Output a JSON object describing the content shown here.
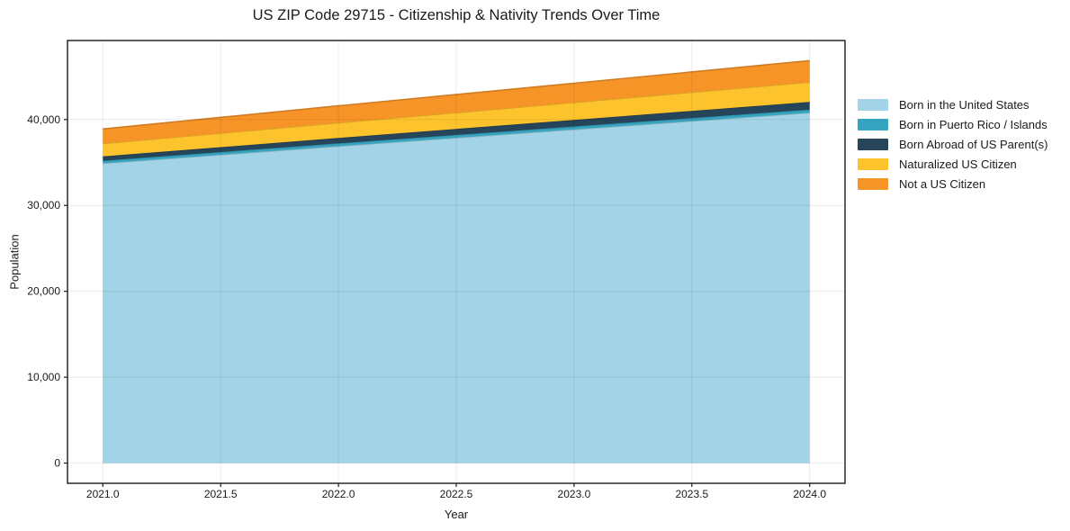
{
  "chart_data": {
    "type": "area",
    "stacked": true,
    "title": "US ZIP Code 29715 - Citizenship & Nativity Trends Over Time",
    "xlabel": "Year",
    "ylabel": "Population",
    "x": [
      2021,
      2022,
      2023,
      2024
    ],
    "series": [
      {
        "name": "Born in the United States",
        "color": "#a3d3e6",
        "values": [
          34900,
          36900,
          38850,
          40800
        ]
      },
      {
        "name": "Born in Puerto Rico / Islands",
        "color": "#35a4c0",
        "values": [
          300,
          320,
          340,
          350
        ]
      },
      {
        "name": "Born Abroad of US Parent(s)",
        "color": "#26455a",
        "values": [
          500,
          630,
          770,
          900
        ]
      },
      {
        "name": "Naturalized US Citizen",
        "color": "#fcc32d",
        "values": [
          1500,
          1770,
          2030,
          2300
        ]
      },
      {
        "name": "Not a US Citizen",
        "color": "#f79428",
        "values": [
          1700,
          1970,
          2230,
          2500
        ]
      }
    ],
    "totals": [
      38900,
      41590,
      44220,
      46850
    ],
    "xticks": [
      {
        "v": 2021.0,
        "label": "2021.0"
      },
      {
        "v": 2021.5,
        "label": "2021.5"
      },
      {
        "v": 2022.0,
        "label": "2022.0"
      },
      {
        "v": 2022.5,
        "label": "2022.5"
      },
      {
        "v": 2023.0,
        "label": "2023.0"
      },
      {
        "v": 2023.5,
        "label": "2023.5"
      },
      {
        "v": 2024.0,
        "label": "2024.0"
      }
    ],
    "yticks": [
      {
        "v": 0,
        "label": "0"
      },
      {
        "v": 10000,
        "label": "10,000"
      },
      {
        "v": 20000,
        "label": "20,000"
      },
      {
        "v": 30000,
        "label": "30,000"
      },
      {
        "v": 40000,
        "label": "40,000"
      }
    ],
    "xlim": [
      2020.85,
      2024.15
    ],
    "ylim": [
      -2350,
      49200
    ],
    "grid": true,
    "legend_position": "right-outside",
    "axis_color": "#1a1a1a",
    "grid_color": "rgba(0,0,0,0.08)"
  }
}
